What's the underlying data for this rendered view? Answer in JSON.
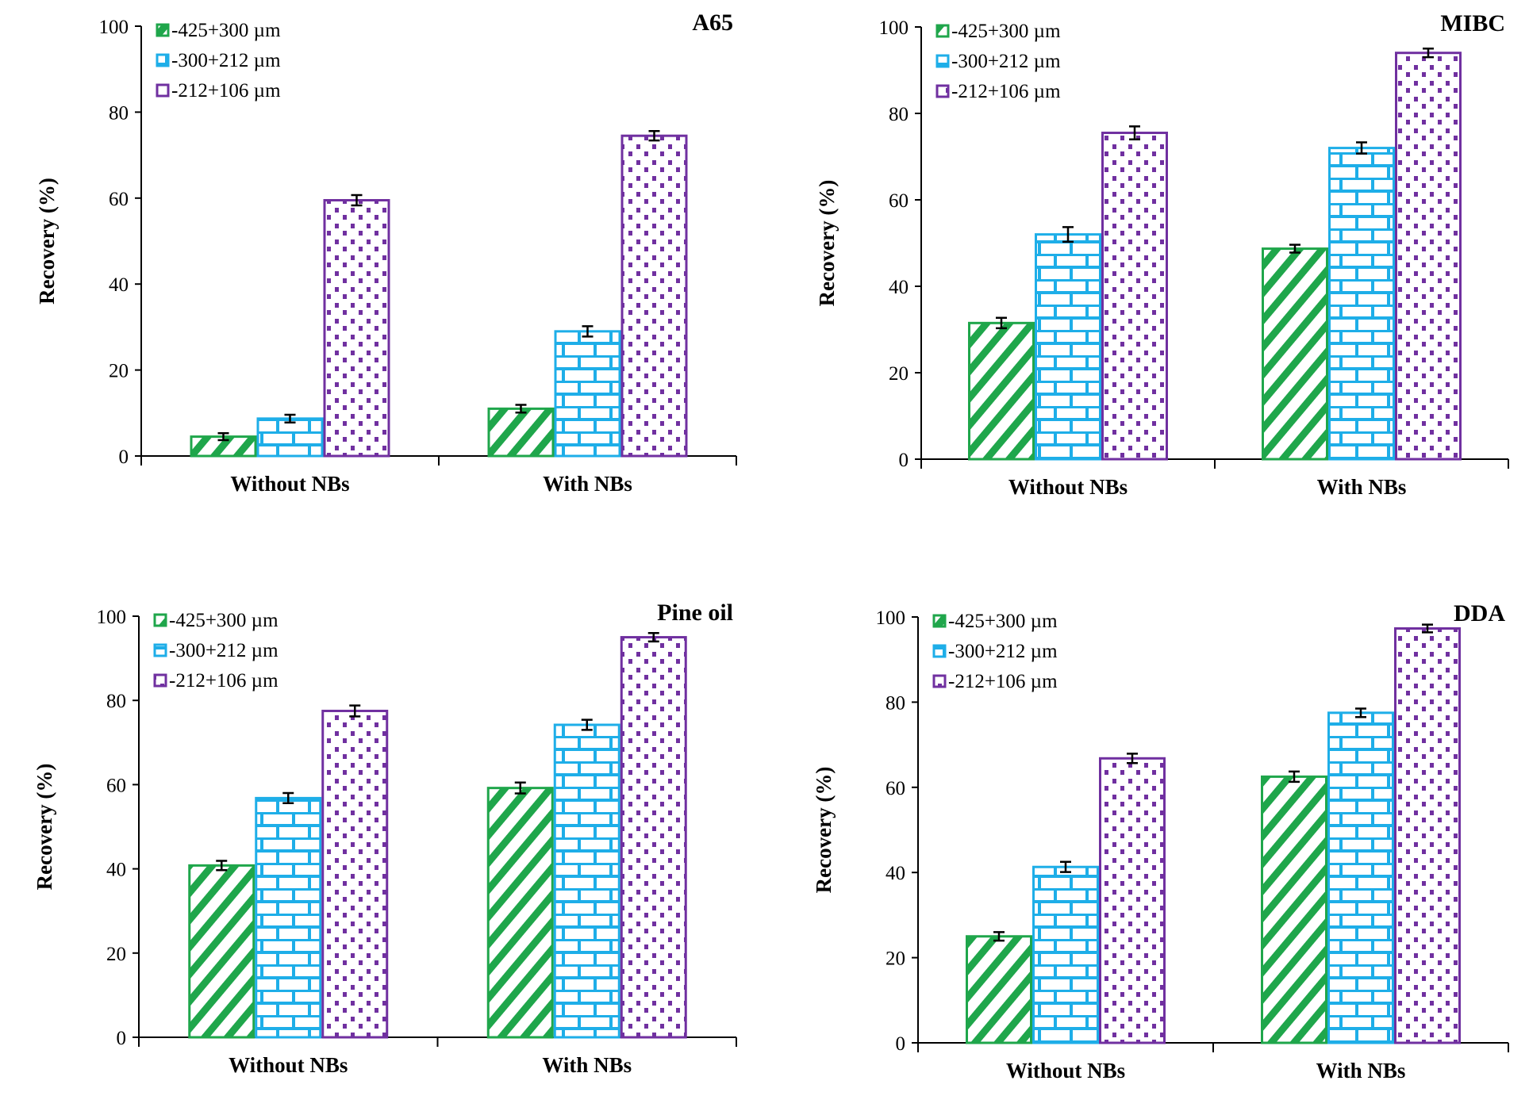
{
  "chart_data": [
    {
      "type": "bar",
      "title": "A65",
      "ylabel": "Recovery (%)",
      "xlabel": "",
      "ylim": [
        0,
        100
      ],
      "yticks": [
        0,
        20,
        40,
        60,
        80,
        100
      ],
      "categories": [
        "Without NBs",
        "With NBs"
      ],
      "legend": "top-left",
      "grid": false,
      "series": [
        {
          "name": "-425+300 µm",
          "values": [
            4.5,
            11
          ],
          "errors": [
            0.8,
            0.9
          ]
        },
        {
          "name": "-300+212 µm",
          "values": [
            8.7,
            29
          ],
          "errors": [
            0.9,
            1.2
          ]
        },
        {
          "name": "-212+106 µm",
          "values": [
            59.5,
            74.5
          ],
          "errors": [
            1.2,
            1.1
          ]
        }
      ]
    },
    {
      "type": "bar",
      "title": "MIBC",
      "ylabel": "Recovery (%)",
      "xlabel": "",
      "ylim": [
        0,
        100
      ],
      "yticks": [
        0,
        20,
        40,
        60,
        80,
        100
      ],
      "categories": [
        "Without NBs",
        "With NBs"
      ],
      "legend": "top-left",
      "grid": false,
      "series": [
        {
          "name": "-425+300 µm",
          "values": [
            31.5,
            48.7
          ],
          "errors": [
            1.2,
            0.9
          ]
        },
        {
          "name": "-300+212 µm",
          "values": [
            52,
            72
          ],
          "errors": [
            1.7,
            1.3
          ]
        },
        {
          "name": "-212+106 µm",
          "values": [
            75.5,
            94
          ],
          "errors": [
            1.5,
            1.0
          ]
        }
      ]
    },
    {
      "type": "bar",
      "title": "Pine oil",
      "ylabel": "Recovery (%)",
      "xlabel": "",
      "ylim": [
        0,
        100
      ],
      "yticks": [
        0,
        20,
        40,
        60,
        80,
        100
      ],
      "categories": [
        "Without NBs",
        "With NBs"
      ],
      "legend": "top-left",
      "grid": false,
      "series": [
        {
          "name": "-425+300 µm",
          "values": [
            40.8,
            59.2
          ],
          "errors": [
            1.1,
            1.3
          ]
        },
        {
          "name": "-300+212 µm",
          "values": [
            56.8,
            74.2
          ],
          "errors": [
            1.2,
            1.2
          ]
        },
        {
          "name": "-212+106 µm",
          "values": [
            77.5,
            95
          ],
          "errors": [
            1.3,
            1.0
          ]
        }
      ]
    },
    {
      "type": "bar",
      "title": "DDA",
      "ylabel": "Recovery (%)",
      "xlabel": "",
      "ylim": [
        0,
        100
      ],
      "yticks": [
        0,
        20,
        40,
        60,
        80,
        100
      ],
      "categories": [
        "Without NBs",
        "With NBs"
      ],
      "legend": "top-left",
      "grid": false,
      "series": [
        {
          "name": "-425+300 µm",
          "values": [
            25,
            62.5
          ],
          "errors": [
            1.0,
            1.2
          ]
        },
        {
          "name": "-300+212 µm",
          "values": [
            41.3,
            77.5
          ],
          "errors": [
            1.2,
            1.0
          ]
        },
        {
          "name": "-212+106 µm",
          "values": [
            66.8,
            97.3
          ],
          "errors": [
            1.1,
            0.9
          ]
        }
      ]
    }
  ],
  "colors": {
    "series": [
      "#1fa64b",
      "#1eaee8",
      "#7030a0"
    ]
  }
}
